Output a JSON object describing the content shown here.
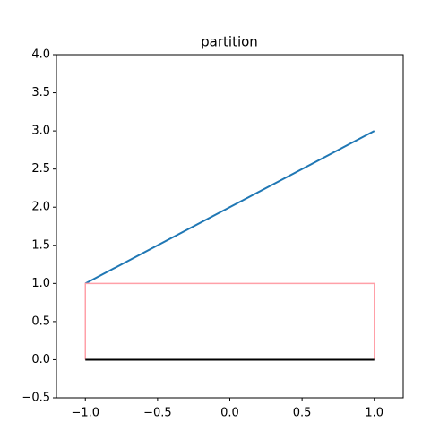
{
  "chart_data": {
    "type": "line",
    "title": "partition",
    "series": [
      {
        "color": "#1f77b4",
        "width": 2,
        "x": [
          -1,
          1
        ],
        "values": [
          1,
          3
        ]
      },
      {
        "color": "#ffa0a8",
        "width": 1.5,
        "x": [
          -1,
          -1,
          1,
          1
        ],
        "values": [
          0,
          1,
          1,
          0
        ]
      },
      {
        "color": "#000000",
        "width": 2,
        "x": [
          -1,
          1
        ],
        "values": [
          0,
          0
        ]
      }
    ],
    "xlim": [
      -1.2,
      1.2
    ],
    "xticks": [
      {
        "value": -1,
        "label": "−1.0"
      },
      {
        "value": -0.5,
        "label": "−0.5"
      },
      {
        "value": 0,
        "label": "0.0"
      },
      0.5,
      {
        "value": 1,
        "label": "1.0"
      }
    ],
    "ylim": [
      -0.5,
      4
    ],
    "yticks": [
      {
        "value": -0.5,
        "label": "−0.5"
      },
      {
        "value": 0,
        "label": "0.0"
      },
      0.5,
      {
        "value": 1,
        "label": "1.0"
      },
      1.5,
      {
        "value": 2,
        "label": "2.0"
      },
      2.5,
      {
        "value": 3,
        "label": "3.0"
      },
      3.5,
      {
        "value": 4,
        "label": "4.0"
      }
    ],
    "grid": false
  }
}
